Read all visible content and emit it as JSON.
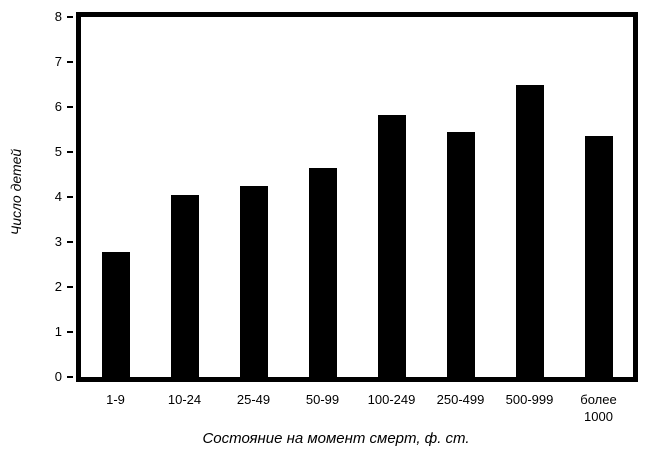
{
  "chart_data": {
    "type": "bar",
    "title": "",
    "categories": [
      "1-9",
      "10-24",
      "25-49",
      "50-99",
      "100-249",
      "250-499",
      "500-999",
      "более 1000"
    ],
    "values": [
      2.78,
      4.05,
      4.25,
      4.65,
      5.82,
      5.45,
      6.5,
      5.35
    ],
    "xlabel": "Состояние на момент смерт, ф. ст.",
    "ylabel": "Число детей",
    "ylim": [
      0,
      8
    ],
    "yticks": [
      0,
      1,
      2,
      3,
      4,
      5,
      6,
      7,
      8
    ],
    "bar_color": "#000000",
    "axis_color": "#000000",
    "background_color": "#ffffff",
    "grid": "off",
    "legend": "none"
  }
}
